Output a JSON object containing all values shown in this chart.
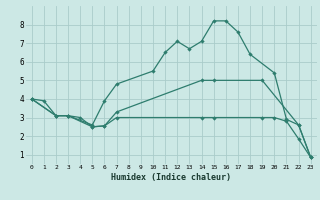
{
  "xlabel": "Humidex (Indice chaleur)",
  "ylabel": "",
  "background_color": "#cce8e5",
  "grid_color": "#aaccca",
  "line_color": "#2e7d6e",
  "xlim": [
    -0.5,
    23.5
  ],
  "ylim": [
    0.5,
    9.0
  ],
  "xticks": [
    0,
    1,
    2,
    3,
    4,
    5,
    6,
    7,
    8,
    9,
    10,
    11,
    12,
    13,
    14,
    15,
    16,
    17,
    18,
    19,
    20,
    21,
    22,
    23
  ],
  "yticks": [
    1,
    2,
    3,
    4,
    5,
    6,
    7,
    8
  ],
  "line1_x": [
    0,
    1,
    2,
    3,
    5,
    6,
    7,
    10,
    11,
    12,
    13,
    14,
    15,
    16,
    17,
    18,
    20,
    21,
    22,
    23
  ],
  "line1_y": [
    4.0,
    3.9,
    3.1,
    3.1,
    2.6,
    3.9,
    4.8,
    5.5,
    6.5,
    7.1,
    6.7,
    7.1,
    8.2,
    8.2,
    7.6,
    6.4,
    5.4,
    2.9,
    2.6,
    0.85
  ],
  "line2_x": [
    0,
    2,
    3,
    4,
    5,
    6,
    7,
    14,
    15,
    19,
    20,
    21,
    22,
    23
  ],
  "line2_y": [
    4.0,
    3.1,
    3.1,
    3.0,
    2.5,
    2.55,
    3.0,
    3.0,
    3.0,
    3.0,
    3.0,
    2.8,
    1.85,
    0.85
  ],
  "line3_x": [
    0,
    2,
    3,
    5,
    6,
    7,
    14,
    15,
    19,
    22,
    23
  ],
  "line3_y": [
    4.0,
    3.1,
    3.1,
    2.5,
    2.55,
    3.3,
    5.0,
    5.0,
    5.0,
    2.6,
    0.85
  ]
}
